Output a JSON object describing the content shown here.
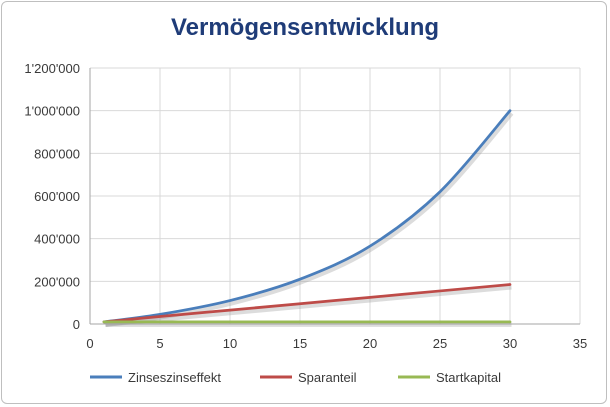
{
  "chart_data": {
    "type": "line",
    "title": "Vermögensentwicklung",
    "xlabel": "",
    "ylabel": "",
    "xlim": [
      0,
      35
    ],
    "ylim": [
      0,
      1200000
    ],
    "xticks": [
      0,
      5,
      10,
      15,
      20,
      25,
      30,
      35
    ],
    "yticks": [
      0,
      200000,
      400000,
      600000,
      800000,
      1000000,
      1200000
    ],
    "ytick_labels": [
      "0",
      "200'000",
      "400'000",
      "600'000",
      "800'000",
      "1'000'000",
      "1'200'000"
    ],
    "grid": true,
    "legend": "bottom",
    "series": [
      {
        "name": "Zinseszinseffekt",
        "color": "#4a7ebb",
        "x": [
          1,
          5,
          10,
          15,
          20,
          25,
          30
        ],
        "values": [
          10000,
          45000,
          110000,
          210000,
          365000,
          620000,
          1000000
        ]
      },
      {
        "name": "Sparanteil",
        "color": "#be4b48",
        "x": [
          1,
          5,
          10,
          15,
          20,
          25,
          30
        ],
        "values": [
          10000,
          35000,
          65000,
          95000,
          125000,
          155000,
          185000
        ]
      },
      {
        "name": "Startkapital",
        "color": "#98b954",
        "x": [
          1,
          5,
          10,
          15,
          20,
          25,
          30
        ],
        "values": [
          10000,
          10000,
          10000,
          10000,
          10000,
          10000,
          10000
        ]
      }
    ]
  }
}
